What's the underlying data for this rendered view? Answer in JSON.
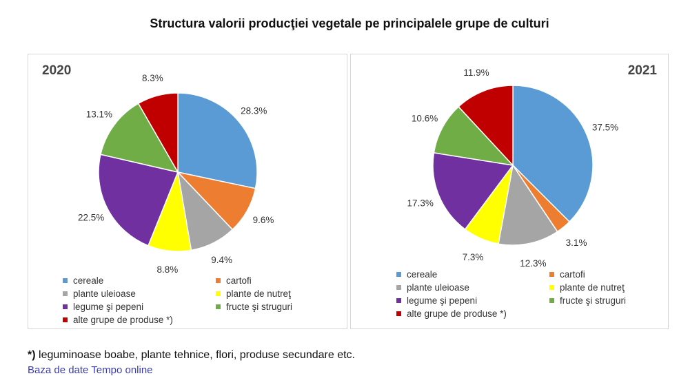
{
  "title": "Structura valorii producţiei vegetale pe principalele grupe de culturi",
  "colors": [
    "#5b9bd5",
    "#ed7d31",
    "#a5a5a5",
    "#ffff00",
    "#7030a0",
    "#70ad47",
    "#c00000"
  ],
  "chart_data": [
    {
      "type": "pie",
      "year": "2020",
      "categories": [
        "cereale",
        "cartofi",
        "plante uleioase",
        "plante de nutreţ",
        "legume şi pepeni",
        "fructe şi struguri",
        "alte grupe de produse *)"
      ],
      "values": [
        28.3,
        9.6,
        9.4,
        8.8,
        22.5,
        13.1,
        8.3
      ],
      "labels": [
        "28.3%",
        "9.6%",
        "9.4%",
        "8.8%",
        "22.5%",
        "13.1%",
        "8.3%"
      ],
      "legend": "bottom"
    },
    {
      "type": "pie",
      "year": "2021",
      "categories": [
        "cereale",
        "cartofi",
        "plante uleioase",
        "plante de nutreţ",
        "legume şi pepeni",
        "fructe şi struguri",
        "alte grupe de produse *)"
      ],
      "values": [
        37.5,
        3.1,
        12.3,
        7.3,
        17.3,
        10.6,
        11.9
      ],
      "labels": [
        "37.5%",
        "3.1%",
        "12.3%",
        "7.3%",
        "17.3%",
        "10.6%",
        "11.9%"
      ],
      "legend": "bottom"
    }
  ],
  "footnote": {
    "marker": "*)",
    "text": " leguminoase boabe, plante tehnice, flori, produse secundare etc."
  },
  "link_text": "Baza de date Tempo online"
}
